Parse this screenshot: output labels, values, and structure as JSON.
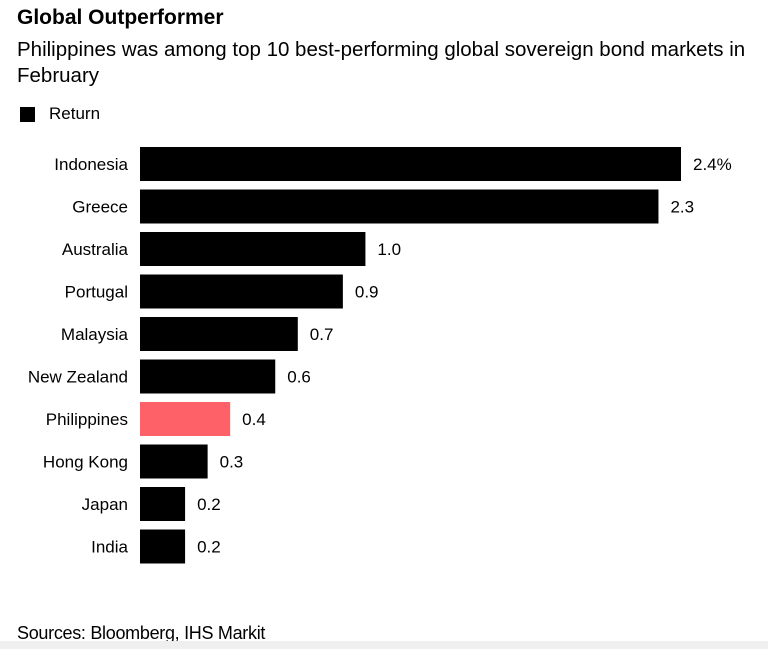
{
  "chart_data": {
    "type": "bar",
    "orientation": "horizontal",
    "title": "Global Outperformer",
    "subtitle": "Philippines was among top 10 best-performing global sovereign bond markets in February",
    "categories": [
      "Indonesia",
      "Greece",
      "Australia",
      "Portugal",
      "Malaysia",
      "New Zealand",
      "Philippines",
      "Hong Kong",
      "Japan",
      "India"
    ],
    "series": [
      {
        "name": "Return",
        "values": [
          2.4,
          2.3,
          1.0,
          0.9,
          0.7,
          0.6,
          0.4,
          0.3,
          0.2,
          0.2
        ]
      }
    ],
    "data_labels": [
      "2.4%",
      "2.3",
      "1.0",
      "0.9",
      "0.7",
      "0.6",
      "0.4",
      "0.3",
      "0.2",
      "0.2"
    ],
    "highlight_category": "Philippines",
    "colors": {
      "bar": "#000000",
      "highlight": "#ff6168"
    },
    "xlim": [
      0,
      2.4
    ],
    "grid": false,
    "legend_placement": "top-left",
    "source": "Sources: Bloomberg, IHS Markit"
  }
}
